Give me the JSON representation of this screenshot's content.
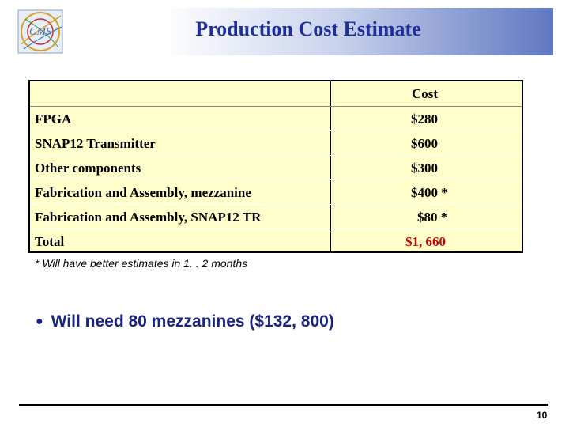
{
  "slide": {
    "title": "Production  Cost  Estimate",
    "logo_text": "CMS",
    "page_number": "10"
  },
  "table": {
    "column_header": "Cost",
    "rows": [
      {
        "label": "FPGA",
        "cost": "$280"
      },
      {
        "label": "SNAP12 Transmitter",
        "cost": "$600"
      },
      {
        "label": "Other components",
        "cost": "$300"
      },
      {
        "label": "Fabrication and Assembly, mezzanine",
        "cost": "$400 *"
      },
      {
        "label": "Fabrication and Assembly, SNAP12 TR",
        "cost": "$80 *"
      },
      {
        "label": "Total",
        "cost": "$1, 660"
      }
    ]
  },
  "footnote": "* Will have better estimates in 1. . 2 months",
  "bullet": "Will need 80 mezzanines ($132, 800)",
  "colors": {
    "title": "#1f2f9a",
    "header_gradient_end": "#5f78c0",
    "table_background": "#ffffcc",
    "total_cost": "#cc0000",
    "bullet_text": "#1a237e"
  }
}
